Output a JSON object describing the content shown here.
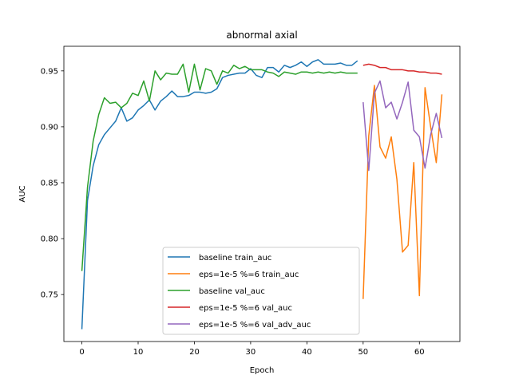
{
  "chart_data": {
    "type": "line",
    "title": "abnormal axial",
    "xlabel": "Epoch",
    "ylabel": "AUC",
    "xlim": [
      -3.2,
      67.2
    ],
    "ylim": [
      0.708,
      0.972
    ],
    "xticks": [
      0,
      10,
      20,
      30,
      40,
      50,
      60
    ],
    "yticks": [
      0.75,
      0.8,
      0.85,
      0.9,
      0.95
    ],
    "ytick_labels": [
      "0.75",
      "0.80",
      "0.85",
      "0.90",
      "0.95"
    ],
    "grid": false,
    "legend_position": "lower-center",
    "series": [
      {
        "name": "baseline train_auc",
        "color": "#1f77b4",
        "x": [
          0,
          1,
          2,
          3,
          4,
          5,
          6,
          7,
          8,
          9,
          10,
          11,
          12,
          13,
          14,
          15,
          16,
          17,
          18,
          19,
          20,
          21,
          22,
          23,
          24,
          25,
          26,
          27,
          28,
          29,
          30,
          31,
          32,
          33,
          34,
          35,
          36,
          37,
          38,
          39,
          40,
          41,
          42,
          43,
          44,
          45,
          46,
          47,
          48,
          49
        ],
        "y": [
          0.719,
          0.834,
          0.865,
          0.884,
          0.893,
          0.899,
          0.905,
          0.917,
          0.905,
          0.908,
          0.915,
          0.919,
          0.924,
          0.915,
          0.923,
          0.927,
          0.932,
          0.927,
          0.927,
          0.928,
          0.931,
          0.931,
          0.93,
          0.931,
          0.934,
          0.944,
          0.946,
          0.947,
          0.948,
          0.948,
          0.952,
          0.946,
          0.944,
          0.953,
          0.953,
          0.949,
          0.955,
          0.953,
          0.955,
          0.958,
          0.954,
          0.958,
          0.96,
          0.956,
          0.956,
          0.956,
          0.957,
          0.955,
          0.955,
          0.959
        ]
      },
      {
        "name": "eps=1e-5 %=6 train_auc",
        "color": "#ff7f0e",
        "x": [
          50,
          51,
          52,
          53,
          54,
          55,
          56,
          57,
          58,
          59,
          60,
          61,
          62,
          63,
          64
        ],
        "y": [
          0.746,
          0.892,
          0.937,
          0.882,
          0.872,
          0.891,
          0.853,
          0.788,
          0.794,
          0.868,
          0.749,
          0.935,
          0.9,
          0.868,
          0.929
        ]
      },
      {
        "name": "baseline val_auc",
        "color": "#2ca02c",
        "x": [
          0,
          1,
          2,
          3,
          4,
          5,
          6,
          7,
          8,
          9,
          10,
          11,
          12,
          13,
          14,
          15,
          16,
          17,
          18,
          19,
          20,
          21,
          22,
          23,
          24,
          25,
          26,
          27,
          28,
          29,
          30,
          31,
          32,
          33,
          34,
          35,
          36,
          37,
          38,
          39,
          40,
          41,
          42,
          43,
          44,
          45,
          46,
          47,
          48,
          49
        ],
        "y": [
          0.771,
          0.846,
          0.887,
          0.911,
          0.926,
          0.921,
          0.922,
          0.917,
          0.921,
          0.93,
          0.928,
          0.941,
          0.923,
          0.95,
          0.942,
          0.948,
          0.947,
          0.947,
          0.956,
          0.931,
          0.956,
          0.933,
          0.952,
          0.95,
          0.938,
          0.95,
          0.948,
          0.955,
          0.952,
          0.954,
          0.951,
          0.951,
          0.951,
          0.949,
          0.948,
          0.945,
          0.949,
          0.948,
          0.947,
          0.949,
          0.949,
          0.948,
          0.949,
          0.948,
          0.949,
          0.948,
          0.949,
          0.948,
          0.948,
          0.948
        ]
      },
      {
        "name": "eps=1e-5 %=6 val_auc",
        "color": "#d62728",
        "x": [
          50,
          51,
          52,
          53,
          54,
          55,
          56,
          57,
          58,
          59,
          60,
          61,
          62,
          63,
          64
        ],
        "y": [
          0.955,
          0.956,
          0.955,
          0.953,
          0.953,
          0.951,
          0.951,
          0.951,
          0.95,
          0.95,
          0.949,
          0.949,
          0.948,
          0.948,
          0.947
        ]
      },
      {
        "name": "eps=1e-5 %=6 val_adv_auc",
        "color": "#9467bd",
        "x": [
          50,
          51,
          52,
          53,
          54,
          55,
          56,
          57,
          58,
          59,
          60,
          61,
          62,
          63,
          64
        ],
        "y": [
          0.922,
          0.861,
          0.93,
          0.941,
          0.917,
          0.922,
          0.907,
          0.922,
          0.94,
          0.897,
          0.891,
          0.863,
          0.893,
          0.912,
          0.89
        ]
      }
    ]
  }
}
